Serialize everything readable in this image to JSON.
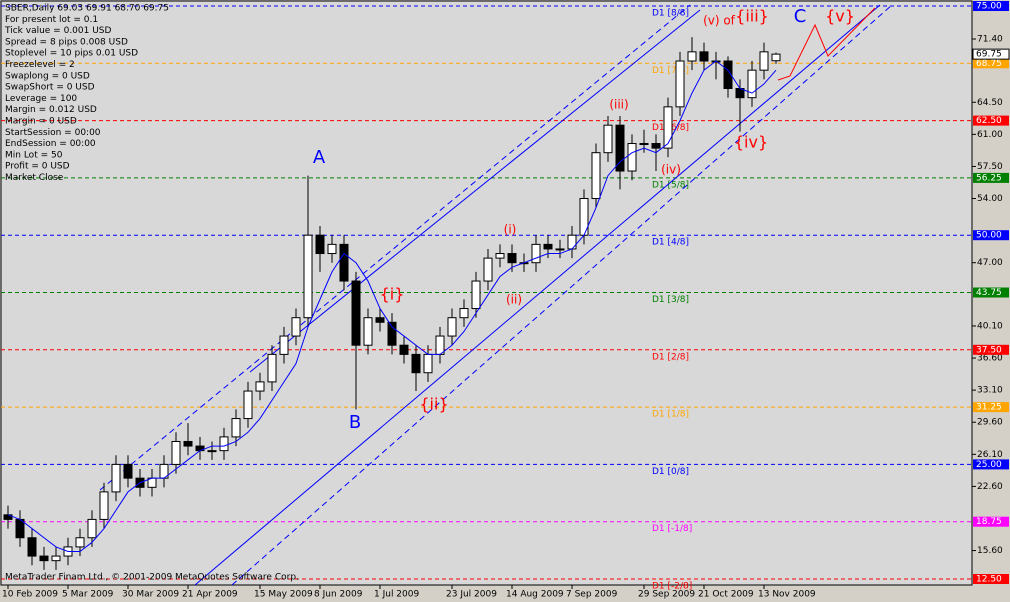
{
  "chart_data": {
    "type": "candlestick",
    "info": [
      "SBER,Daily  69.03 69.91 68.70 69.75",
      "For present lot = 0.1",
      "Tick value = 0.001  USD",
      "Spread = 8 pips  0.008  USD",
      "Stoplevel = 10 pips  0.01  USD",
      "Freezelevel = 2",
      "Swaplong = 0  USD",
      "SwapShort = 0  USD",
      "Leverage = 100",
      "Margin = 0.012  USD",
      "Margin = 0  USD",
      "StartSession = 00:00",
      "EndSession = 00:00",
      "Min Lot = 50",
      "Profit = 0  USD",
      "Market Close"
    ],
    "copyright": "MetaTrader Finam Ltd., © 2001-2009 MetaQuotes Software Corp.",
    "ylim": [
      12.5,
      75
    ],
    "yticks": [
      {
        "value": 71.4,
        "label": "71.40"
      },
      {
        "value": 64.5,
        "label": "64.50"
      },
      {
        "value": 61,
        "label": "61.00"
      },
      {
        "value": 57.5,
        "label": "57.50"
      },
      {
        "value": 54,
        "label": "54.00"
      },
      {
        "value": 47,
        "label": "47.00"
      },
      {
        "value": 40.1,
        "label": "40.10"
      },
      {
        "value": 36.6,
        "label": "36.60"
      },
      {
        "value": 33.1,
        "label": "33.10"
      },
      {
        "value": 29.6,
        "label": "29.60"
      },
      {
        "value": 26.1,
        "label": "26.10"
      },
      {
        "value": 22.6,
        "label": "22.60"
      },
      {
        "value": 15.6,
        "label": "15.60"
      }
    ],
    "levels": [
      {
        "label": "D1 [8/8]",
        "value": 75,
        "box": "75.00",
        "color": "#0000ff"
      },
      {
        "label": "D1 [7/8]",
        "value": 68.75,
        "box": "68.75",
        "color": "#ffa500"
      },
      {
        "label": "D1 [6/8]",
        "value": 62.5,
        "box": "62.50",
        "color": "#ff0000"
      },
      {
        "label": "D1 [5/8]",
        "value": 56.25,
        "box": "56.25",
        "color": "#008000"
      },
      {
        "label": "D1 [4/8]",
        "value": 50,
        "box": "50.00",
        "color": "#0000ff"
      },
      {
        "label": "D1 [3/8]",
        "value": 43.75,
        "box": "43.75",
        "color": "#008000"
      },
      {
        "label": "D1 [2/8]",
        "value": 37.5,
        "box": "37.50",
        "color": "#ff0000"
      },
      {
        "label": "D1 [1/8]",
        "value": 31.25,
        "box": "31.25",
        "color": "#ffa500"
      },
      {
        "label": "D1 [0/8]",
        "value": 25,
        "box": "25.00",
        "color": "#0000ff"
      },
      {
        "label": "D1 [-1/8]",
        "value": 18.75,
        "box": "18.75",
        "color": "#ff00ff"
      },
      {
        "label": "D1 [-2/8]",
        "value": 12.5,
        "box": "12.50",
        "color": "#ff0000"
      }
    ],
    "current": {
      "value": 69.75,
      "label": "69.75"
    },
    "categories": [
      "10 Feb 2009",
      null,
      null,
      null,
      null,
      "5 Mar 2009",
      null,
      null,
      null,
      null,
      "30 Mar 2009",
      null,
      null,
      null,
      null,
      "21 Apr 2009",
      null,
      null,
      null,
      null,
      null,
      "15 May 2009",
      null,
      null,
      null,
      null,
      "8 Jun 2009",
      null,
      null,
      null,
      null,
      "1 Jul 2009",
      null,
      null,
      null,
      null,
      null,
      "23 Jul 2009",
      null,
      null,
      null,
      null,
      "14 Aug 2009",
      null,
      null,
      null,
      null,
      "7 Sep 2009",
      null,
      null,
      null,
      null,
      null,
      "29 Sep 2009",
      null,
      null,
      null,
      null,
      "21 Oct 2009",
      null,
      null,
      null,
      null,
      "13 Nov 2009",
      null
    ],
    "ohlc": [
      [
        19.5,
        20.5,
        18,
        19
      ],
      [
        19,
        20,
        16,
        17
      ],
      [
        17,
        18,
        14,
        15
      ],
      [
        15,
        16,
        13.5,
        14.5
      ],
      [
        14.5,
        16,
        13.5,
        15
      ],
      [
        15,
        17,
        14,
        16
      ],
      [
        16,
        18,
        15,
        17
      ],
      [
        17,
        20,
        16,
        19
      ],
      [
        19,
        23,
        18,
        22
      ],
      [
        22,
        26,
        21,
        25
      ],
      [
        25,
        26,
        22.5,
        23.5
      ],
      [
        23.5,
        24.5,
        21.5,
        22.5
      ],
      [
        22.5,
        24.5,
        21.5,
        23.5
      ],
      [
        23.5,
        26,
        22.5,
        25
      ],
      [
        25,
        28.5,
        24,
        27.5
      ],
      [
        27.5,
        29.5,
        26,
        27
      ],
      [
        27,
        28,
        25.5,
        26.5
      ],
      [
        26.5,
        27.5,
        25.5,
        26.5
      ],
      [
        26.5,
        29,
        25.5,
        28
      ],
      [
        28,
        31,
        27,
        30
      ],
      [
        30,
        34,
        29,
        33
      ],
      [
        33,
        35,
        32,
        34
      ],
      [
        34,
        38,
        33,
        37
      ],
      [
        37,
        40,
        36,
        39
      ],
      [
        39,
        42,
        38,
        41
      ],
      [
        41,
        56.5,
        40,
        50
      ],
      [
        50,
        51,
        46,
        48
      ],
      [
        48,
        50,
        47,
        49
      ],
      [
        49,
        50,
        44,
        45
      ],
      [
        45,
        46,
        31,
        38
      ],
      [
        38,
        42,
        37,
        41
      ],
      [
        41,
        42,
        39.5,
        40.5
      ],
      [
        40.5,
        41.5,
        37,
        38
      ],
      [
        38,
        39,
        36,
        37
      ],
      [
        37,
        38,
        33,
        35
      ],
      [
        35,
        38,
        34,
        37
      ],
      [
        37,
        40,
        36,
        39
      ],
      [
        39,
        42,
        38,
        41
      ],
      [
        41,
        43,
        40,
        42
      ],
      [
        42,
        46,
        41,
        45
      ],
      [
        45,
        48.5,
        44,
        47.5
      ],
      [
        47.5,
        49,
        46.5,
        48
      ],
      [
        48,
        49,
        46,
        47
      ],
      [
        47,
        48,
        46,
        47
      ],
      [
        47,
        50,
        46,
        49
      ],
      [
        49,
        50,
        47.5,
        48.5
      ],
      [
        48.5,
        49.5,
        47.5,
        48.5
      ],
      [
        48.5,
        51,
        47.5,
        50
      ],
      [
        50,
        55,
        49,
        54
      ],
      [
        54,
        60,
        53,
        59
      ],
      [
        59,
        63,
        58,
        62
      ],
      [
        62,
        63,
        55,
        57
      ],
      [
        57,
        61,
        56,
        60
      ],
      [
        60,
        61.5,
        59,
        60
      ],
      [
        60,
        61,
        57,
        59.5
      ],
      [
        59.5,
        65,
        58.5,
        64
      ],
      [
        64,
        70,
        63,
        69
      ],
      [
        69,
        71.6,
        68,
        70
      ],
      [
        70,
        71,
        68,
        69
      ],
      [
        69,
        70,
        67,
        69
      ],
      [
        69,
        69.5,
        65,
        66
      ],
      [
        66,
        67,
        61.3,
        65
      ],
      [
        65,
        69,
        64,
        68
      ],
      [
        68,
        71,
        67,
        70
      ],
      [
        69.03,
        69.91,
        68.7,
        69.75
      ]
    ],
    "ma": [
      19.5,
      19,
      18,
      17,
      16,
      15.5,
      15.5,
      16.5,
      18,
      20,
      22,
      23,
      23.5,
      23.5,
      24.5,
      25.5,
      26.5,
      27,
      27,
      27.5,
      28.5,
      30,
      32,
      34,
      36,
      40,
      43,
      46,
      48,
      47,
      45,
      42,
      40,
      39,
      38,
      37,
      37,
      38,
      39.5,
      41.5,
      43.5,
      45.5,
      46.5,
      47,
      47.5,
      48,
      48,
      48.5,
      50,
      53,
      56.5,
      58,
      59,
      59.5,
      59,
      60,
      62.5,
      65.5,
      68,
      69,
      68,
      66,
      65.5,
      66.5,
      68
    ],
    "annotations": {
      "A": "A",
      "B": "B",
      "C": "C",
      "w1": "{i}",
      "w2": "{ii}",
      "w3": "{iii}",
      "w4": "{iv}",
      "w5": "{v}",
      "s1": "(i)",
      "s2": "(ii)",
      "s3": "(iii)",
      "s4": "(iv)",
      "s5": "(v) of"
    }
  }
}
